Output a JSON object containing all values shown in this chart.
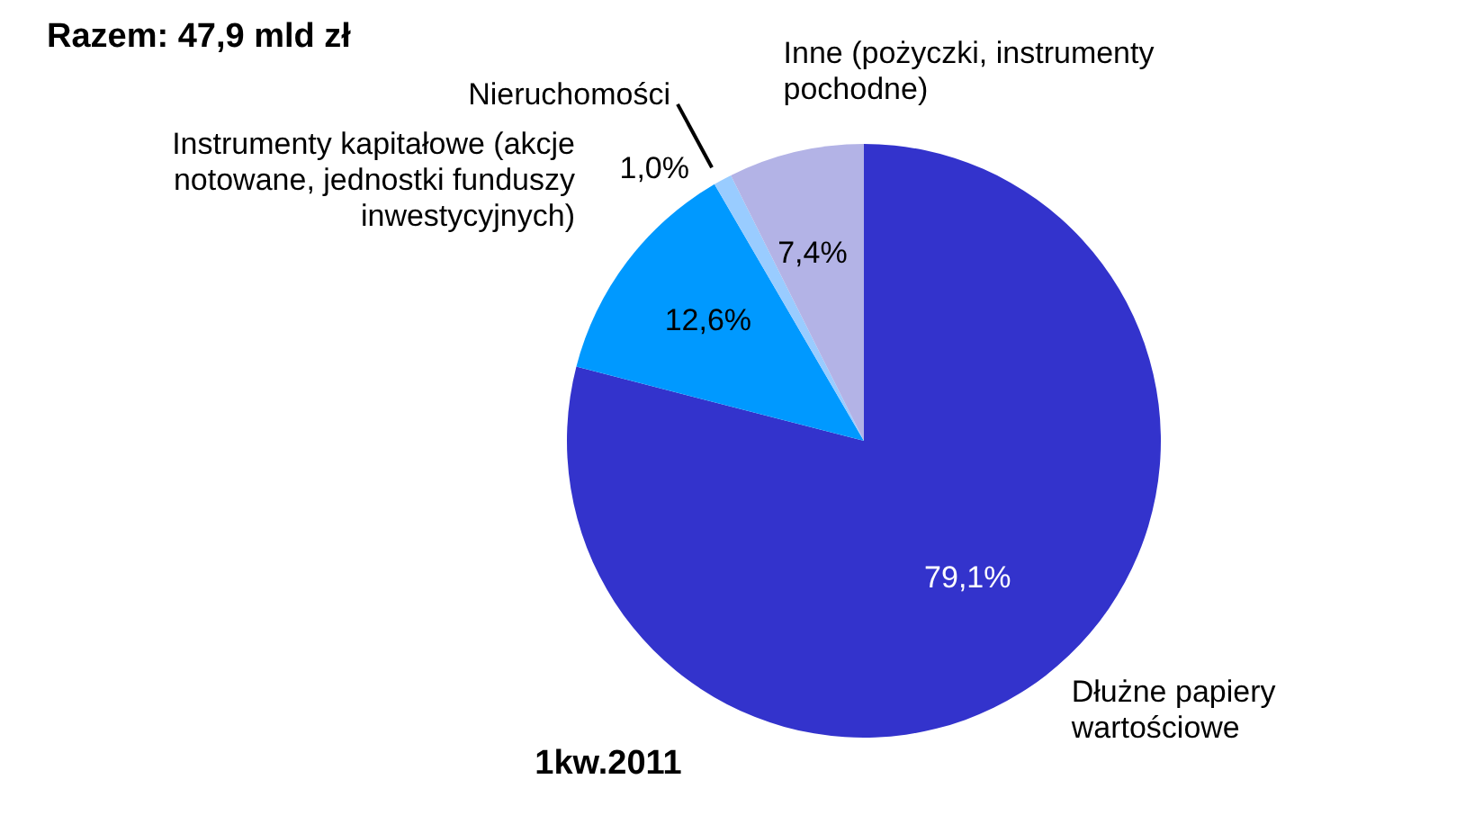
{
  "chart_data": {
    "type": "pie",
    "title": "Razem: 47,9 mld zł",
    "subtitle": "1kw.2011",
    "categories": [
      "Dłużne papiery wartościowe",
      "Instrumenty kapitałowe (akcje notowane, jednostki funduszy inwestycyjnych)",
      "Nieruchomości",
      "Inne (pożyczki, instrumenty pochodne)"
    ],
    "values": [
      79.1,
      12.6,
      1.0,
      7.4
    ],
    "value_labels": [
      "79,1%",
      "12,6%",
      "1,0%",
      "7,4%"
    ],
    "colors": [
      "#3333cc",
      "#0099ff",
      "#99ccff",
      "#b3b3e6"
    ]
  }
}
